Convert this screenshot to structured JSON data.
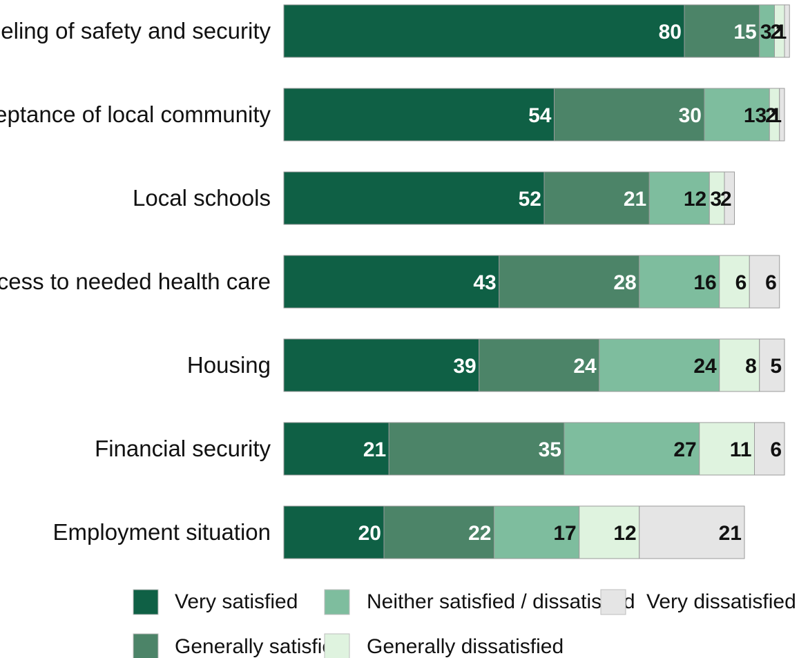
{
  "chart_data": {
    "type": "bar",
    "orientation": "horizontal",
    "stacked": true,
    "title": "",
    "xlabel": "",
    "ylabel": "",
    "grid": false,
    "legend_position": "bottom",
    "categories": [
      "A feeling of safety and security",
      "Acceptance of local community",
      "Local schools",
      "Access to needed health care",
      "Housing",
      "Financial security",
      "Employment situation"
    ],
    "series": [
      {
        "name": "Very satisfied",
        "color": "#0f6045",
        "label_color": "#ffffff",
        "values": [
          80,
          54,
          52,
          43,
          39,
          21,
          20
        ]
      },
      {
        "name": "Generally satisfied",
        "color": "#4c8468",
        "label_color": "#ffffff",
        "values": [
          15,
          30,
          21,
          28,
          24,
          35,
          22
        ]
      },
      {
        "name": "Neither satisfied / dissatisfied",
        "color": "#7ebd9e",
        "label_color": "#111111",
        "values": [
          3,
          13,
          12,
          16,
          24,
          27,
          17
        ]
      },
      {
        "name": "Generally dissatisfied",
        "color": "#dff3df",
        "label_color": "#111111",
        "values": [
          2,
          2,
          3,
          6,
          8,
          11,
          12
        ]
      },
      {
        "name": "Very dissatisfied",
        "color": "#e5e5e5",
        "label_color": "#111111",
        "values": [
          1,
          1,
          2,
          6,
          5,
          6,
          21
        ]
      }
    ]
  }
}
